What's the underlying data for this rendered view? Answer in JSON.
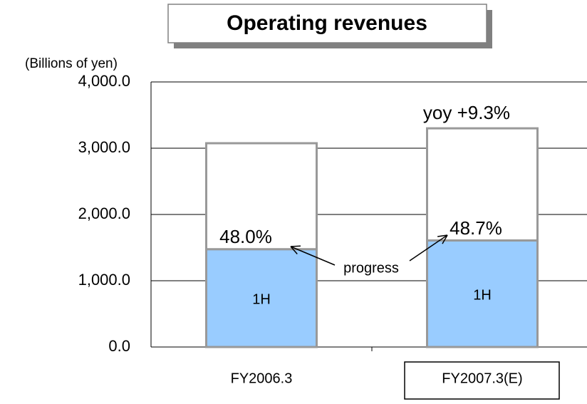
{
  "chart_data": {
    "type": "stacked_bar",
    "title": "Operating revenues",
    "y_label": "(Billions of yen)",
    "categories": [
      "FY2006.3",
      "FY2007.3(E)"
    ],
    "series": [
      {
        "name": "1H",
        "color": "#99ccff",
        "values": [
          1476,
          1608
        ]
      },
      {
        "color": "#ffffff",
        "values": [
          1599,
          1692
        ]
      }
    ],
    "annotations": [
      "48.0%",
      "48.7%",
      "progress",
      "yoy  +9.3%"
    ],
    "ylim": [
      0,
      4000
    ],
    "yticks": [
      {
        "value": 0,
        "label": "0.0"
      },
      {
        "value": 1000,
        "label": "1,000.0"
      },
      {
        "value": 2000,
        "label": "2,000.0"
      },
      {
        "value": 3000,
        "label": "3,000.0"
      },
      {
        "value": 4000,
        "label": "4,000.0"
      }
    ],
    "grid": true
  }
}
